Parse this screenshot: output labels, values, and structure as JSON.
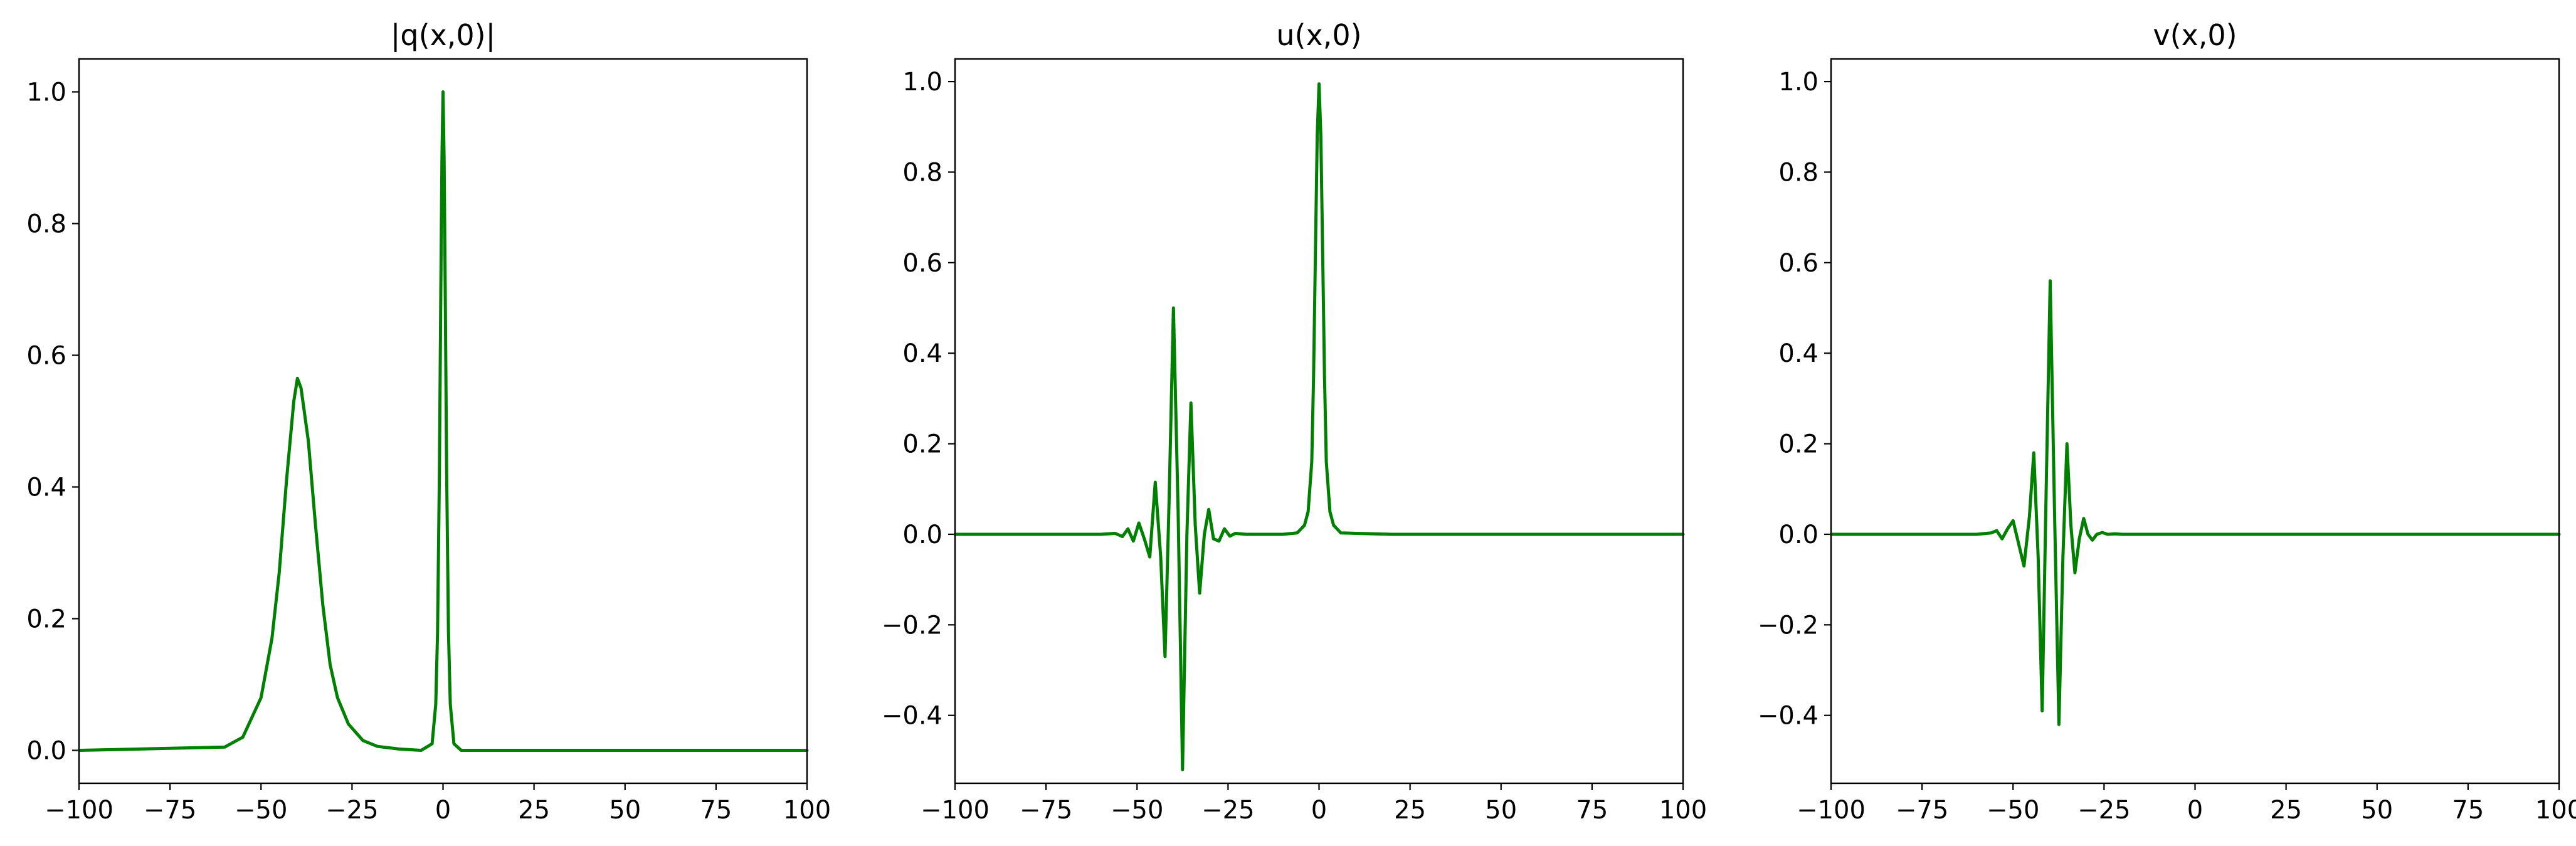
{
  "figure": {
    "line_color": "#008000"
  },
  "chart_data": [
    {
      "type": "line",
      "title": "|q(x,0)|",
      "xlabel": "",
      "ylabel": "",
      "xlim": [
        -100,
        100
      ],
      "ylim": [
        -0.05,
        1.05
      ],
      "xticks": [
        -100,
        -75,
        -50,
        -25,
        0,
        25,
        50,
        75,
        100
      ],
      "yticks": [
        0.0,
        0.2,
        0.4,
        0.6,
        0.8,
        1.0
      ],
      "xtick_labels": [
        "−100",
        "−75",
        "−50",
        "−25",
        "0",
        "25",
        "50",
        "75",
        "100"
      ],
      "ytick_labels": [
        "0.0",
        "0.2",
        "0.4",
        "0.6",
        "0.8",
        "1.0"
      ],
      "grid": false,
      "series": [
        {
          "x": [
            -100,
            -60,
            -55,
            -50,
            -47,
            -45,
            -43,
            -41,
            -40,
            -39,
            -37,
            -35,
            -33,
            -31,
            -29,
            -26,
            -22,
            -18,
            -12,
            -6,
            -3,
            -2,
            -1.5,
            -1,
            -0.6,
            -0.3,
            0,
            0.3,
            0.6,
            1,
            1.5,
            2,
            3,
            5,
            20,
            60,
            100
          ],
          "y": [
            0.0,
            0.005,
            0.02,
            0.08,
            0.17,
            0.27,
            0.41,
            0.53,
            0.565,
            0.55,
            0.47,
            0.34,
            0.22,
            0.13,
            0.08,
            0.04,
            0.015,
            0.006,
            0.002,
            0.0,
            0.01,
            0.07,
            0.18,
            0.42,
            0.7,
            0.9,
            1.0,
            0.9,
            0.7,
            0.42,
            0.18,
            0.07,
            0.01,
            0.0,
            0.0,
            0.0,
            0.0
          ]
        }
      ]
    },
    {
      "type": "line",
      "title": "u(x,0)",
      "xlabel": "",
      "ylabel": "",
      "xlim": [
        -100,
        100
      ],
      "ylim": [
        -0.55,
        1.05
      ],
      "xticks": [
        -100,
        -75,
        -50,
        -25,
        0,
        25,
        50,
        75,
        100
      ],
      "yticks": [
        -0.4,
        -0.2,
        0.0,
        0.2,
        0.4,
        0.6,
        0.8,
        1.0
      ],
      "xtick_labels": [
        "−100",
        "−75",
        "−50",
        "−25",
        "0",
        "25",
        "50",
        "75",
        "100"
      ],
      "ytick_labels": [
        "−0.4",
        "−0.2",
        "0.0",
        "0.2",
        "0.4",
        "0.6",
        "0.8",
        "1.0"
      ],
      "grid": false,
      "series": [
        {
          "x": [
            -100,
            -60,
            -56,
            -54,
            -52.5,
            -51,
            -49.5,
            -48,
            -46.5,
            -45,
            -43.5,
            -42.3,
            -41.2,
            -40,
            -38.7,
            -37.5,
            -36.3,
            -35.2,
            -34,
            -32.8,
            -31.5,
            -30.3,
            -29,
            -27.5,
            -26,
            -24.5,
            -23,
            -20,
            -10,
            -6,
            -4,
            -3,
            -2,
            -1.5,
            -1,
            -0.5,
            0,
            0.5,
            1,
            1.5,
            2,
            3,
            4,
            6,
            20,
            60,
            100
          ],
          "y": [
            0.0,
            0.0,
            0.002,
            -0.005,
            0.012,
            -0.015,
            0.025,
            -0.01,
            -0.05,
            0.115,
            -0.05,
            -0.27,
            0.07,
            0.5,
            0.05,
            -0.52,
            0.0,
            0.29,
            0.02,
            -0.13,
            0.0,
            0.055,
            -0.01,
            -0.015,
            0.012,
            -0.004,
            0.002,
            0.0,
            0.0,
            0.003,
            0.02,
            0.05,
            0.16,
            0.35,
            0.62,
            0.88,
            0.995,
            0.88,
            0.62,
            0.35,
            0.16,
            0.05,
            0.02,
            0.003,
            0.0,
            0.0,
            0.0
          ]
        }
      ]
    },
    {
      "type": "line",
      "title": "v(x,0)",
      "xlabel": "",
      "ylabel": "",
      "xlim": [
        -100,
        100
      ],
      "ylim": [
        -0.55,
        1.05
      ],
      "xticks": [
        -100,
        -75,
        -50,
        -25,
        0,
        25,
        50,
        75,
        100
      ],
      "yticks": [
        -0.4,
        -0.2,
        0.0,
        0.2,
        0.4,
        0.6,
        0.8,
        1.0
      ],
      "xtick_labels": [
        "−100",
        "−75",
        "−50",
        "−25",
        "0",
        "25",
        "50",
        "75",
        "100"
      ],
      "ytick_labels": [
        "−0.4",
        "−0.2",
        "0.0",
        "0.2",
        "0.4",
        "0.6",
        "0.8",
        "1.0"
      ],
      "grid": false,
      "series": [
        {
          "x": [
            -100,
            -60,
            -56,
            -54.5,
            -53,
            -51.5,
            -50,
            -48.5,
            -47,
            -45.5,
            -44.3,
            -43.1,
            -42,
            -40.9,
            -39.8,
            -38.6,
            -37.4,
            -36.3,
            -35.2,
            -34.1,
            -33,
            -31.8,
            -30.6,
            -29.4,
            -28.2,
            -27,
            -25.5,
            -24,
            -22,
            -20,
            0,
            50,
            100
          ],
          "y": [
            0.0,
            0.0,
            0.003,
            0.008,
            -0.01,
            0.012,
            0.03,
            -0.02,
            -0.07,
            0.04,
            0.18,
            -0.05,
            -0.39,
            0.1,
            0.56,
            0.05,
            -0.42,
            -0.05,
            0.2,
            0.02,
            -0.085,
            -0.01,
            0.035,
            0.0,
            -0.013,
            0.0,
            0.004,
            0.0,
            0.001,
            0.0,
            0.0,
            0.0,
            0.0
          ]
        }
      ]
    }
  ]
}
